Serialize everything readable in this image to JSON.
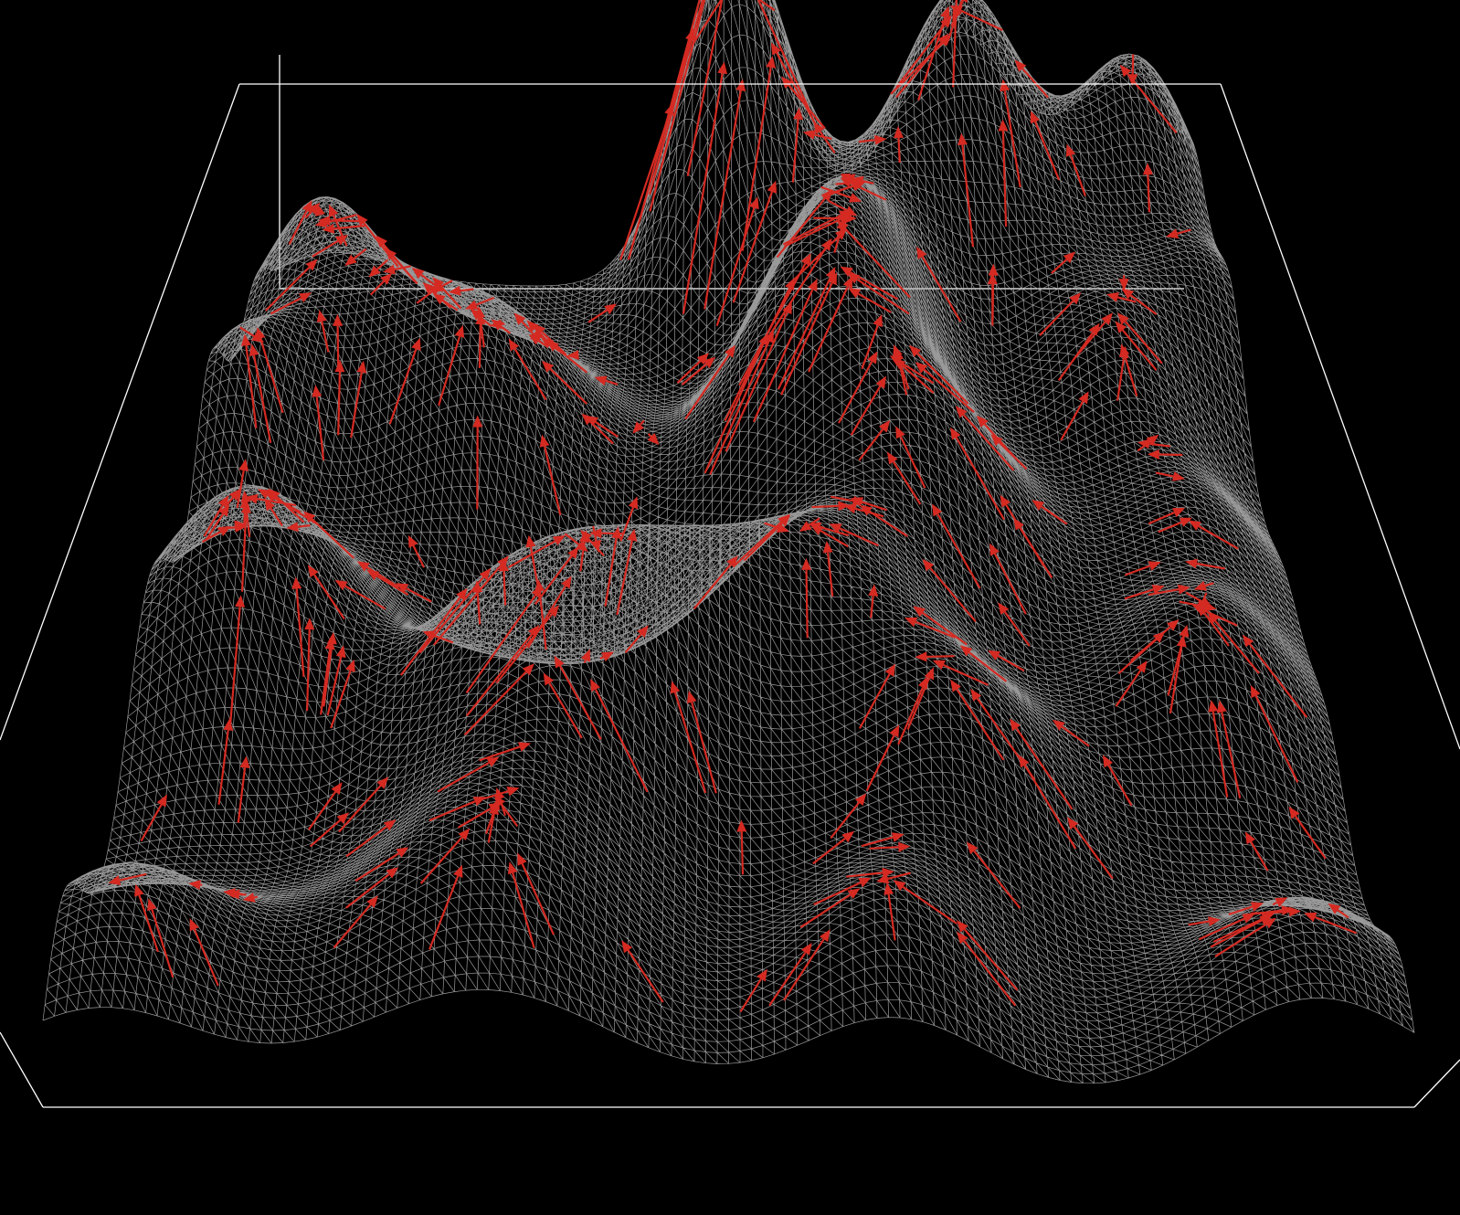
{
  "scene": {
    "background_color": "#000000",
    "bounding_box_color": "#ffffff",
    "mesh_color": "#b4b4b4",
    "arrow_color": "#d42a22",
    "surface": {
      "grid_rows": 120,
      "grid_cols": 120,
      "peaks": [
        {
          "u": 0.5,
          "v": 0.04,
          "h": 0.46,
          "s": 0.06
        },
        {
          "u": 0.75,
          "v": 0.04,
          "h": 0.34,
          "s": 0.065
        },
        {
          "u": 0.94,
          "v": 0.04,
          "h": 0.31,
          "s": 0.07
        },
        {
          "u": 0.06,
          "v": 0.1,
          "h": 0.16,
          "s": 0.06
        },
        {
          "u": 0.64,
          "v": 0.12,
          "h": 0.18,
          "s": 0.08
        },
        {
          "u": 0.82,
          "v": 0.15,
          "h": 0.14,
          "s": 0.07
        },
        {
          "u": 0.13,
          "v": 0.2,
          "h": 0.16,
          "s": 0.08
        },
        {
          "u": 0.62,
          "v": 0.24,
          "h": 0.18,
          "s": 0.07
        },
        {
          "u": 0.02,
          "v": 0.3,
          "h": 0.2,
          "s": 0.06
        },
        {
          "u": 0.27,
          "v": 0.28,
          "h": 0.22,
          "s": 0.09
        },
        {
          "u": 0.87,
          "v": 0.28,
          "h": 0.2,
          "s": 0.07
        },
        {
          "u": 0.99,
          "v": 0.2,
          "h": 0.18,
          "s": 0.06
        },
        {
          "u": 0.58,
          "v": 0.35,
          "h": 0.33,
          "s": 0.09
        },
        {
          "u": 0.7,
          "v": 0.46,
          "h": 0.22,
          "s": 0.08
        },
        {
          "u": 0.92,
          "v": 0.44,
          "h": 0.16,
          "s": 0.07
        },
        {
          "u": 0.08,
          "v": 0.55,
          "h": 0.3,
          "s": 0.09
        },
        {
          "u": 0.58,
          "v": 0.6,
          "h": 0.24,
          "s": 0.08
        },
        {
          "u": 0.9,
          "v": 0.62,
          "h": 0.22,
          "s": 0.08
        },
        {
          "u": 0.29,
          "v": 0.64,
          "h": 0.18,
          "s": 0.07
        },
        {
          "u": 0.46,
          "v": 0.64,
          "h": 0.18,
          "s": 0.07
        },
        {
          "u": 0.38,
          "v": 0.72,
          "h": 0.25,
          "s": 0.08
        },
        {
          "u": 0.68,
          "v": 0.74,
          "h": 0.24,
          "s": 0.08
        },
        {
          "u": 0.54,
          "v": 0.78,
          "h": 0.05,
          "s": 0.05
        },
        {
          "u": 0.32,
          "v": 0.9,
          "h": 0.24,
          "s": 0.1
        },
        {
          "u": 0.04,
          "v": 0.92,
          "h": 0.2,
          "s": 0.08
        },
        {
          "u": 0.62,
          "v": 0.93,
          "h": 0.18,
          "s": 0.07
        },
        {
          "u": 0.93,
          "v": 0.94,
          "h": 0.18,
          "s": 0.08
        }
      ]
    },
    "arrows": {
      "count": 380,
      "seed": 7
    }
  }
}
